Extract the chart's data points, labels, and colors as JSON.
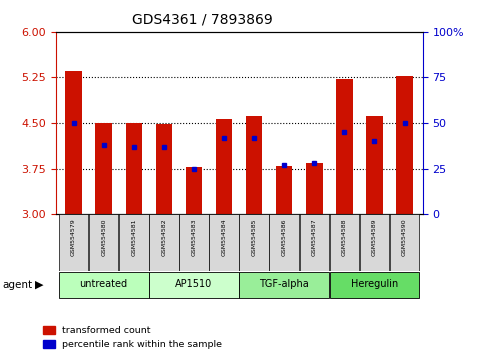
{
  "title": "GDS4361 / 7893869",
  "samples": [
    "GSM554579",
    "GSM554580",
    "GSM554581",
    "GSM554582",
    "GSM554583",
    "GSM554584",
    "GSM554585",
    "GSM554586",
    "GSM554587",
    "GSM554588",
    "GSM554589",
    "GSM554590"
  ],
  "red_values": [
    5.36,
    4.5,
    4.5,
    4.48,
    3.78,
    4.57,
    4.62,
    3.8,
    3.85,
    5.22,
    4.62,
    5.27
  ],
  "blue_values": [
    50,
    38,
    37,
    37,
    25,
    42,
    42,
    27,
    28,
    45,
    40,
    50
  ],
  "ymin": 3,
  "ymax": 6,
  "y_ticks": [
    3,
    3.75,
    4.5,
    5.25,
    6
  ],
  "y2min": 0,
  "y2max": 100,
  "y2_ticks": [
    0,
    25,
    50,
    75,
    100
  ],
  "y2_labels": [
    "0",
    "25",
    "50",
    "75",
    "100%"
  ],
  "bar_color": "#cc1100",
  "dot_color": "#0000cc",
  "bar_width": 0.55,
  "bg_color": "#ffffff",
  "tick_color_left": "#cc1100",
  "tick_color_right": "#0000cc",
  "legend_items": [
    "transformed count",
    "percentile rank within the sample"
  ],
  "agent_label": "agent",
  "agent_groups": [
    {
      "label": "untreated",
      "start": 0,
      "end": 2
    },
    {
      "label": "AP1510",
      "start": 3,
      "end": 5
    },
    {
      "label": "TGF-alpha",
      "start": 6,
      "end": 8
    },
    {
      "label": "Heregulin",
      "start": 9,
      "end": 11
    }
  ],
  "group_colors": [
    "#bbffbb",
    "#ccffcc",
    "#99ee99",
    "#66dd66"
  ],
  "sample_box_color": "#d8d8d8",
  "grid_ticks": [
    3.75,
    4.5,
    5.25
  ]
}
